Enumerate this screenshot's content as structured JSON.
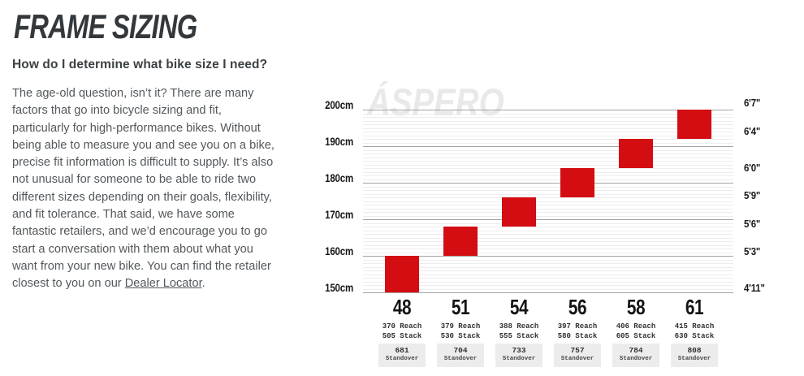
{
  "page": {
    "title": "FRAME SIZING",
    "question": "How do I determine what bike size I need?",
    "body_lines": [
      "The age-old question, isn’t it? There are many",
      "factors that go into bicycle sizing and fit,",
      "particularly for high-performance bikes. Without",
      "being able to measure you and see you on a bike,",
      "precise fit information is difficult to supply. It’s also",
      "not unusual for someone to be able to ride two",
      "different sizes depending on their goals, flexibility,",
      "and fit tolerance. That said, we have some",
      "fantastic retailers, and we’d encourage you to go",
      "start a conversation with them about what you",
      "want from your new bike. You can find the retailer"
    ],
    "body_last_line_prefix": "closest to you on our ",
    "link_text": "Dealer Locator",
    "body_last_line_suffix": "."
  },
  "chart_data": {
    "type": "bar",
    "watermark": "ÁSPERO",
    "bar_color": "#d30d12",
    "ylim": [
      150,
      200
    ],
    "grid": "on",
    "minor_grid_step_cm": 1,
    "left_axis_ticks": [
      {
        "label": "150cm",
        "cm": 150
      },
      {
        "label": "160cm",
        "cm": 160
      },
      {
        "label": "170cm",
        "cm": 170
      },
      {
        "label": "180cm",
        "cm": 180
      },
      {
        "label": "190cm",
        "cm": 190
      },
      {
        "label": "200cm",
        "cm": 200
      }
    ],
    "right_axis_ticks": [
      {
        "label": "4'11\"",
        "cm": 149.9
      },
      {
        "label": "5'3\"",
        "cm": 160.0
      },
      {
        "label": "5'6\"",
        "cm": 167.6
      },
      {
        "label": "5'9\"",
        "cm": 175.3
      },
      {
        "label": "6'0\"",
        "cm": 183.0
      },
      {
        "label": "6'4\"",
        "cm": 193.0
      },
      {
        "label": "6'7\"",
        "cm": 200.7
      }
    ],
    "sizes": [
      {
        "size": "48",
        "rider_height_cm": [
          150,
          160
        ],
        "reach": "370",
        "stack": "505",
        "standover": "681"
      },
      {
        "size": "51",
        "rider_height_cm": [
          160,
          168
        ],
        "reach": "379",
        "stack": "530",
        "standover": "704"
      },
      {
        "size": "54",
        "rider_height_cm": [
          168,
          176
        ],
        "reach": "388",
        "stack": "555",
        "standover": "733"
      },
      {
        "size": "56",
        "rider_height_cm": [
          176,
          184
        ],
        "reach": "397",
        "stack": "580",
        "standover": "757"
      },
      {
        "size": "58",
        "rider_height_cm": [
          184,
          192
        ],
        "reach": "406",
        "stack": "605",
        "standover": "784"
      },
      {
        "size": "61",
        "rider_height_cm": [
          192,
          200
        ],
        "reach": "415",
        "stack": "630",
        "standover": "808"
      }
    ],
    "labels": {
      "reach": "Reach",
      "stack": "Stack",
      "standover": "Standover"
    }
  }
}
